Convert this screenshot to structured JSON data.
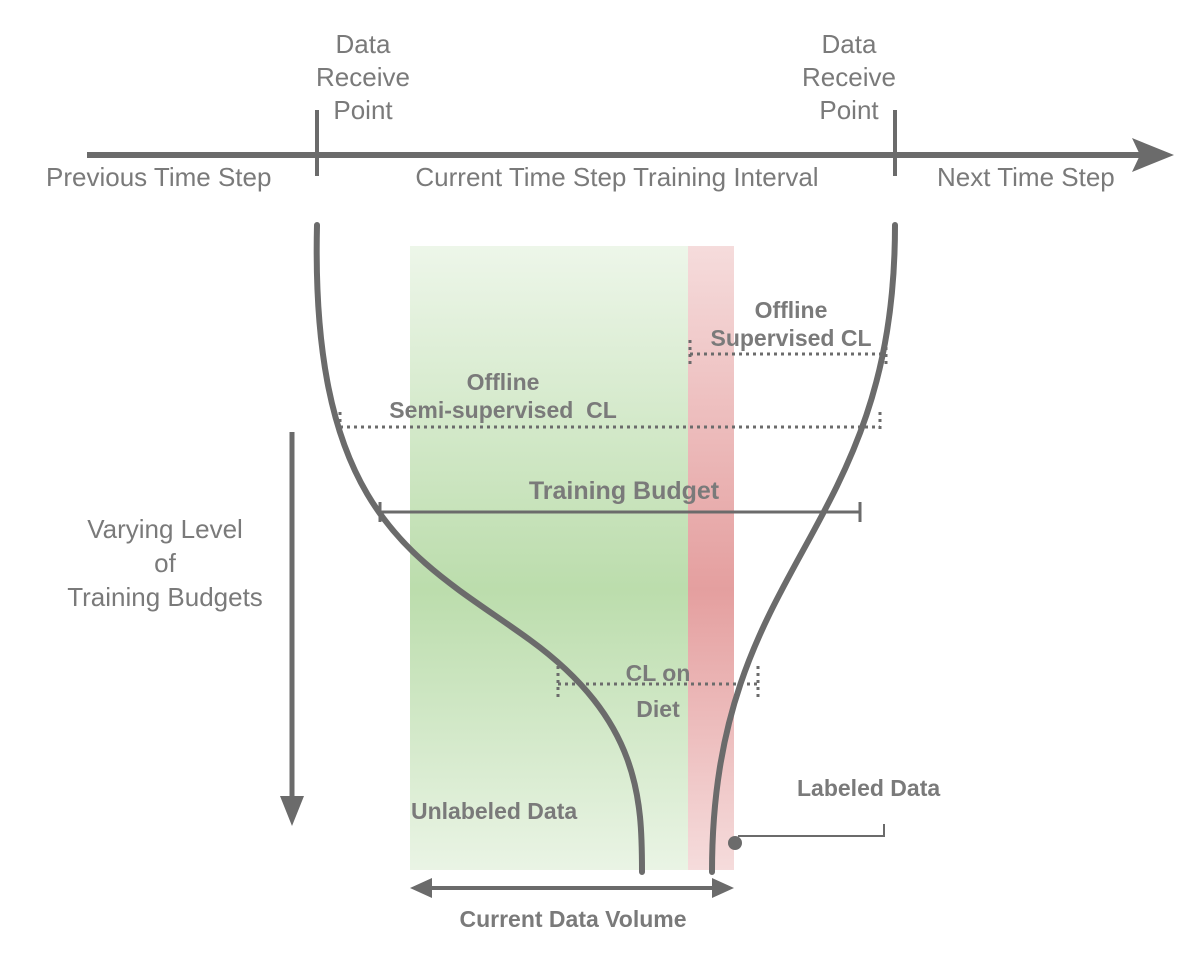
{
  "timeline": {
    "left_label": "Previous Time Step",
    "middle_label": "Current Time Step Training Interval",
    "right_label": "Next Time Step",
    "receive_point_left": [
      "Data",
      "Receive",
      "Point"
    ],
    "receive_point_right": [
      "Data",
      "Receive",
      "Point"
    ]
  },
  "budget_axis": {
    "label": [
      "Varying Level",
      "of",
      "Training Budgets"
    ]
  },
  "levels": {
    "offline_supervised": [
      "Offline",
      "Supervised CL"
    ],
    "offline_semi_supervised": [
      "Offline",
      "Semi-supervised  CL"
    ],
    "training_budget": "Training Budget",
    "cl_on_diet": [
      "CL on",
      "Diet"
    ]
  },
  "data_regions": {
    "unlabeled": "Unlabeled Data",
    "labeled": "Labeled Data",
    "volume": "Current Data Volume"
  },
  "colors": {
    "line": "#6b6b6b",
    "text": "#7a7a7a",
    "unlabeled_fill": "#b8dba8",
    "labeled_fill": "#e39a9a"
  }
}
